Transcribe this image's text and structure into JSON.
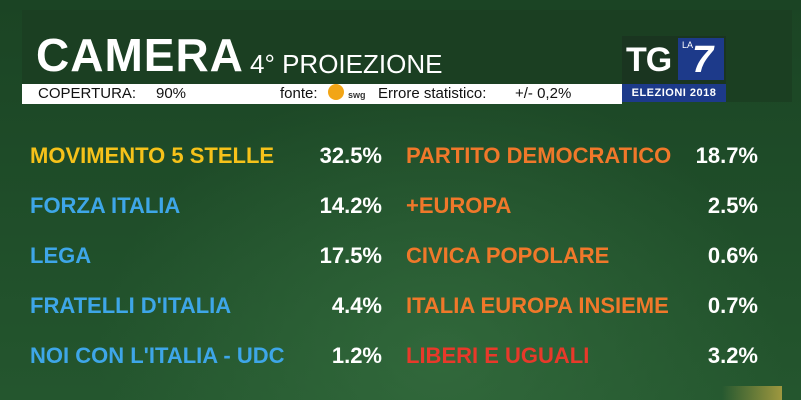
{
  "header": {
    "title": "CAMERA",
    "subtitle": "4° PROIEZIONE"
  },
  "infobar": {
    "coverage_label": "COPERTURA:",
    "coverage_value": "90%",
    "source_label": "fonte:",
    "source_name": "swg",
    "error_label": "Errore statistico:",
    "error_value": "+/- 0,2%"
  },
  "logo": {
    "tg": "TG",
    "la": "LA",
    "seven": "7",
    "caption": "ELEZIONI 2018"
  },
  "left_parties": [
    {
      "name": "MOVIMENTO 5 STELLE",
      "pct": "32.5%",
      "color": "#f6c21a"
    },
    {
      "name": "FORZA ITALIA",
      "pct": "14.2%",
      "color": "#3ea6e8"
    },
    {
      "name": "LEGA",
      "pct": "17.5%",
      "color": "#3ea6e8"
    },
    {
      "name": "FRATELLI D'ITALIA",
      "pct": "4.4%",
      "color": "#3ea6e8"
    },
    {
      "name": "NOI CON L'ITALIA - UDC",
      "pct": "1.2%",
      "color": "#3ea6e8"
    }
  ],
  "right_parties": [
    {
      "name": "PARTITO DEMOCRATICO",
      "pct": "18.7%",
      "color": "#f0782a"
    },
    {
      "name": "+EUROPA",
      "pct": "2.5%",
      "color": "#f0782a"
    },
    {
      "name": "CIVICA POPOLARE",
      "pct": "0.6%",
      "color": "#f0782a"
    },
    {
      "name": "ITALIA EUROPA INSIEME",
      "pct": "0.7%",
      "color": "#f0782a"
    },
    {
      "name": "LIBERI E UGUALI",
      "pct": "3.2%",
      "color": "#e8392a"
    }
  ]
}
